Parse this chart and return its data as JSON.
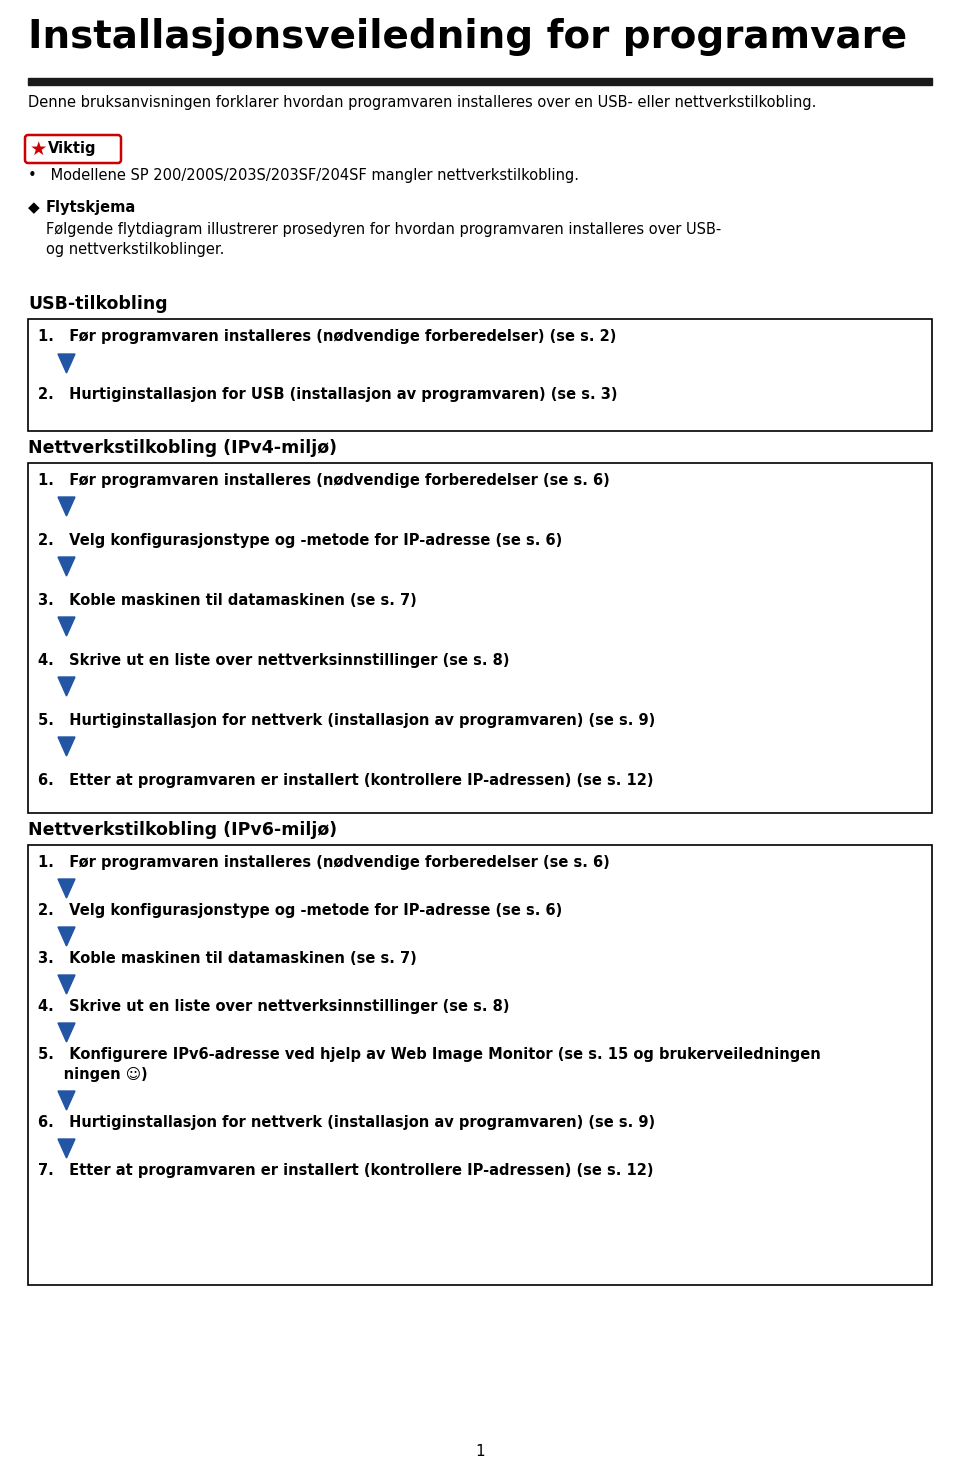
{
  "title": "Installasjonsveiledning for programvare",
  "intro_line1": "Denne bruksanvisningen forklarer hvordan programvaren installeres over en USB- eller nettverkstilkobling.",
  "viktig_label": "Viktig",
  "viktig_bullet": "Modellene SP 200/200S/203S/203SF/204SF mangler nettverkstilkobling.",
  "flyt_header": "Flytskjema",
  "flyt_line1": "Følgende flytdiagram illustrerer prosedyren for hvordan programvaren installeres over USB-",
  "flyt_line2": "og nettverkstilkoblinger.",
  "usb_header": "USB-tilkobling",
  "usb_steps": [
    "1.   Før programvaren installeres (nødvendige forberedelser) (se s. 2)",
    "2.   Hurtiginstallasjon for USB (installasjon av programvaren) (se s. 3)"
  ],
  "ipv4_header": "Nettverkstilkobling (IPv4-miljø)",
  "ipv4_steps": [
    "1.   Før programvaren installeres (nødvendige forberedelser (se s. 6)",
    "2.   Velg konfigurasjonstype og -metode for IP-adresse (se s. 6)",
    "3.   Koble maskinen til datamaskinen (se s. 7)",
    "4.   Skrive ut en liste over nettverksinnstillinger (se s. 8)",
    "5.   Hurtiginstallasjon for nettverk (installasjon av programvaren) (se s. 9)",
    "6.   Etter at programvaren er installert (kontrollere IP-adressen) (se s. 12)"
  ],
  "ipv6_header": "Nettverkstilkobling (IPv6-miljø)",
  "ipv6_steps": [
    "1.   Før programvaren installeres (nødvendige forberedelser (se s. 6)",
    "2.   Velg konfigurasjonstype og -metode for IP-adresse (se s. 6)",
    "3.   Koble maskinen til datamaskinen (se s. 7)",
    "4.   Skrive ut en liste over nettverksinnstillinger (se s. 8)",
    "5.   Konfigurere IPv6-adresse ved hjelp av Web Image Monitor (se s. 15 og brukerveiledningen ☺)",
    "6.   Hurtiginstallasjon for nettverk (installasjon av programvaren) (se s. 9)",
    "7.   Etter at programvaren er installert (kontrollere IP-adressen) (se s. 12)"
  ],
  "ipv6_step5_line1": "5.   Konfigurere IPv6-adresse ved hjelp av Web Image Monitor (se s. 15 og brukerveiledningen",
  "ipv6_step5_line2": "     ningen ☺)",
  "page_number": "1",
  "bg_color": "#ffffff",
  "text_color": "#000000",
  "box_border_color": "#000000",
  "arrow_color": "#2255a4",
  "header_bar_color": "#1a1a1a",
  "viktig_border_color": "#cc0000",
  "viktig_star_color": "#cc0000"
}
